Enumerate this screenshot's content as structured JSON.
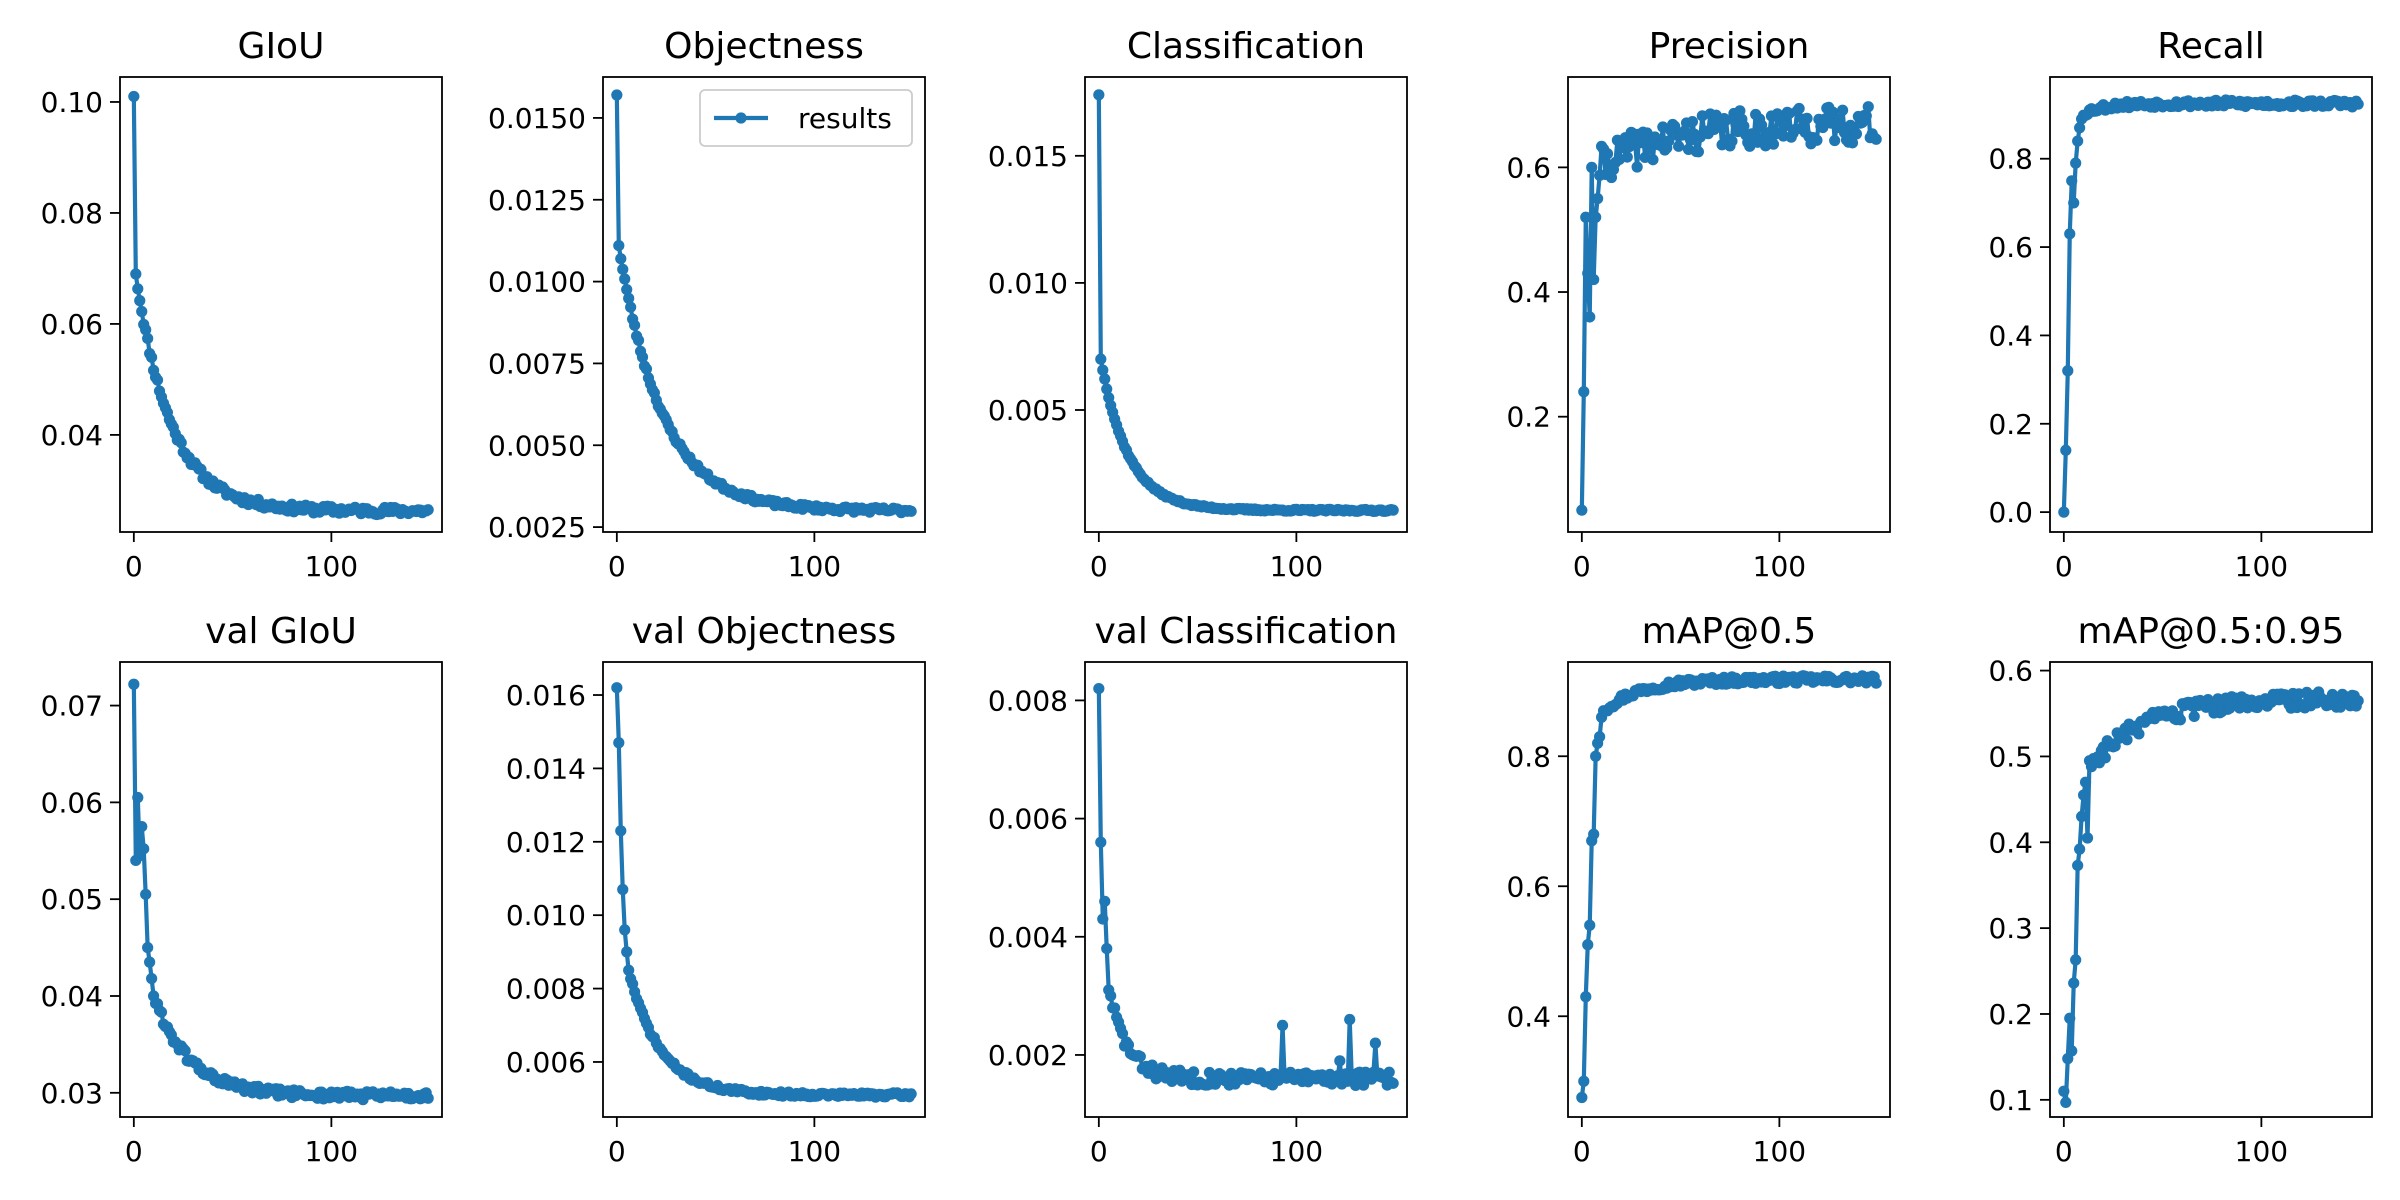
{
  "chart_data": [
    {
      "type": "line",
      "title": "GIoU",
      "series": [
        {
          "name": "results",
          "color": "#1f77b4",
          "x_range": [
            0,
            149
          ],
          "profile": {
            "kind": "decay",
            "start": 0.101,
            "fast_value": 0.069,
            "end": 0.0263,
            "tau": 18,
            "noise": 0.0007,
            "seed": 11
          }
        }
      ],
      "xlim": [
        -7,
        156
      ],
      "ylim": [
        0.0225,
        0.1045
      ],
      "xticks": [
        0,
        100
      ],
      "xticklabels": [
        "0",
        "100"
      ],
      "yticks": [
        0.04,
        0.06,
        0.08,
        0.1
      ],
      "yticklabels": [
        "0.04",
        "0.06",
        "0.08",
        "0.10"
      ]
    },
    {
      "type": "line",
      "title": "Objectness",
      "series": [
        {
          "name": "results",
          "color": "#1f77b4",
          "x_range": [
            0,
            149
          ],
          "profile": {
            "kind": "decay",
            "start": 0.0157,
            "fast_value": 0.0111,
            "end": 0.003,
            "tau": 22,
            "noise": 8e-05,
            "seed": 23
          }
        }
      ],
      "xlim": [
        -7,
        156
      ],
      "ylim": [
        0.00235,
        0.01625
      ],
      "xticks": [
        0,
        100
      ],
      "xticklabels": [
        "0",
        "100"
      ],
      "yticks": [
        0.0025,
        0.005,
        0.0075,
        0.01,
        0.0125,
        0.015
      ],
      "yticklabels": [
        "0.0025",
        "0.0050",
        "0.0075",
        "0.0100",
        "0.0125",
        "0.0150"
      ],
      "legend": {
        "entries": [
          "results"
        ],
        "position": "top-right"
      }
    },
    {
      "type": "line",
      "title": "Classification",
      "series": [
        {
          "name": "results",
          "color": "#1f77b4",
          "x_range": [
            0,
            149
          ],
          "profile": {
            "kind": "decay",
            "start": 0.0174,
            "fast_value": 0.007,
            "end": 0.00105,
            "tau": 14,
            "noise": 4e-05,
            "seed": 37
          }
        }
      ],
      "xlim": [
        -7,
        156
      ],
      "ylim": [
        0.0002,
        0.0181
      ],
      "xticks": [
        0,
        100
      ],
      "xticklabels": [
        "0",
        "100"
      ],
      "yticks": [
        0.005,
        0.01,
        0.015
      ],
      "yticklabels": [
        "0.005",
        "0.010",
        "0.015"
      ]
    },
    {
      "type": "line",
      "title": "Precision",
      "series": [
        {
          "name": "results",
          "color": "#1f77b4",
          "x_range": [
            0,
            149
          ],
          "profile": {
            "kind": "rise",
            "start": 0.05,
            "points_early": [
              0.24,
              0.52,
              0.43,
              0.36,
              0.6,
              0.42,
              0.52,
              0.55
            ],
            "plateau": 0.6,
            "end": 0.67,
            "tau": 35,
            "noise": 0.03,
            "seed": 41
          }
        }
      ],
      "xlim": [
        -7,
        156
      ],
      "ylim": [
        0.015,
        0.745
      ],
      "xticks": [
        0,
        100
      ],
      "xticklabels": [
        "0",
        "100"
      ],
      "yticks": [
        0.2,
        0.4,
        0.6
      ],
      "yticklabels": [
        "0.2",
        "0.4",
        "0.6"
      ]
    },
    {
      "type": "line",
      "title": "Recall",
      "series": [
        {
          "name": "results",
          "color": "#1f77b4",
          "x_range": [
            0,
            149
          ],
          "profile": {
            "kind": "rise",
            "start": 0.0,
            "points_early": [
              0.14,
              0.32,
              0.63,
              0.75,
              0.7,
              0.79,
              0.84,
              0.87,
              0.89
            ],
            "plateau": 0.9,
            "end": 0.925,
            "tau": 10,
            "noise": 0.008,
            "seed": 53
          }
        }
      ],
      "xlim": [
        -7,
        156
      ],
      "ylim": [
        -0.045,
        0.985
      ],
      "xticks": [
        0,
        100
      ],
      "xticklabels": [
        "0",
        "100"
      ],
      "yticks": [
        0,
        0.2,
        0.4,
        0.6,
        0.8
      ],
      "yticklabels": [
        "0.0",
        "0.2",
        "0.4",
        "0.6",
        "0.8"
      ]
    },
    {
      "type": "line",
      "title": "val GIoU",
      "series": [
        {
          "name": "results",
          "color": "#1f77b4",
          "x_range": [
            0,
            149
          ],
          "profile": {
            "kind": "decay",
            "start": 0.0722,
            "points_early": [
              0.054,
              0.0605,
              0.0545,
              0.0575,
              0.0552,
              0.0505,
              0.045,
              0.0435,
              0.0418,
              0.04
            ],
            "end": 0.0297,
            "tau": 18,
            "noise": 0.00045,
            "seed": 61
          }
        }
      ],
      "xlim": [
        -7,
        156
      ],
      "ylim": [
        0.0275,
        0.0745
      ],
      "xticks": [
        0,
        100
      ],
      "xticklabels": [
        "0",
        "100"
      ],
      "yticks": [
        0.03,
        0.04,
        0.05,
        0.06,
        0.07
      ],
      "yticklabels": [
        "0.03",
        "0.04",
        "0.05",
        "0.06",
        "0.07"
      ]
    },
    {
      "type": "line",
      "title": "val Objectness",
      "series": [
        {
          "name": "results",
          "color": "#1f77b4",
          "x_range": [
            0,
            149
          ],
          "profile": {
            "kind": "decay",
            "start": 0.0162,
            "points_early": [
              0.0147,
              0.0123,
              0.0107,
              0.0096,
              0.009,
              0.0085
            ],
            "end": 0.0051,
            "tau": 16,
            "noise": 6e-05,
            "seed": 71
          }
        }
      ],
      "xlim": [
        -7,
        156
      ],
      "ylim": [
        0.0045,
        0.0169
      ],
      "xticks": [
        0,
        100
      ],
      "xticklabels": [
        "0",
        "100"
      ],
      "yticks": [
        0.006,
        0.008,
        0.01,
        0.012,
        0.014,
        0.016
      ],
      "yticklabels": [
        "0.006",
        "0.008",
        "0.010",
        "0.012",
        "0.014",
        "0.016"
      ]
    },
    {
      "type": "line",
      "title": "val Classification",
      "series": [
        {
          "name": "results",
          "color": "#1f77b4",
          "x_range": [
            0,
            149
          ],
          "profile": {
            "kind": "decay",
            "start": 0.0082,
            "points_early": [
              0.0056,
              0.0043,
              0.0046,
              0.0038,
              0.0031,
              0.003
            ],
            "end": 0.0016,
            "tau": 9,
            "noise": 0.00012,
            "spikes": [
              [
                93,
                0.0025
              ],
              [
                127,
                0.0026
              ],
              [
                122,
                0.0019
              ],
              [
                140,
                0.0022
              ]
            ],
            "seed": 83
          }
        }
      ],
      "xlim": [
        -7,
        156
      ],
      "ylim": [
        0.00095,
        0.00865
      ],
      "xticks": [
        0,
        100
      ],
      "xticklabels": [
        "0",
        "100"
      ],
      "yticks": [
        0.002,
        0.004,
        0.006,
        0.008
      ],
      "yticklabels": [
        "0.002",
        "0.004",
        "0.006",
        "0.008"
      ]
    },
    {
      "type": "line",
      "title": "mAP@0.5",
      "series": [
        {
          "name": "results",
          "color": "#1f77b4",
          "x_range": [
            0,
            149
          ],
          "profile": {
            "kind": "rise",
            "start": 0.275,
            "points_early": [
              0.3,
              0.43,
              0.51,
              0.54,
              0.67,
              0.68,
              0.8,
              0.82,
              0.83,
              0.86,
              0.87
            ],
            "plateau": 0.87,
            "end": 0.918,
            "tau": 18,
            "noise": 0.006,
            "seed": 97
          }
        }
      ],
      "xlim": [
        -7,
        156
      ],
      "ylim": [
        0.245,
        0.945
      ],
      "xticks": [
        0,
        100
      ],
      "xticklabels": [
        "0",
        "100"
      ],
      "yticks": [
        0.4,
        0.6,
        0.8
      ],
      "yticklabels": [
        "0.4",
        "0.6",
        "0.8"
      ]
    },
    {
      "type": "line",
      "title": "mAP@0.5:0.95",
      "series": [
        {
          "name": "results",
          "color": "#1f77b4",
          "x_range": [
            0,
            149
          ],
          "profile": {
            "kind": "rise",
            "start": 0.11,
            "points_early": [
              0.097,
              0.148,
              0.195,
              0.157,
              0.236,
              0.263,
              0.373,
              0.392,
              0.43,
              0.455,
              0.47,
              0.405,
              0.495
            ],
            "plateau": 0.49,
            "end": 0.568,
            "tau": 30,
            "noise": 0.01,
            "seed": 103
          }
        }
      ],
      "xlim": [
        -7,
        156
      ],
      "ylim": [
        0.08,
        0.61
      ],
      "xticks": [
        0,
        100
      ],
      "xticklabels": [
        "0",
        "100"
      ],
      "yticks": [
        0.1,
        0.2,
        0.3,
        0.4,
        0.5,
        0.6
      ],
      "yticklabels": [
        "0.1",
        "0.2",
        "0.3",
        "0.4",
        "0.5",
        "0.6"
      ]
    }
  ]
}
